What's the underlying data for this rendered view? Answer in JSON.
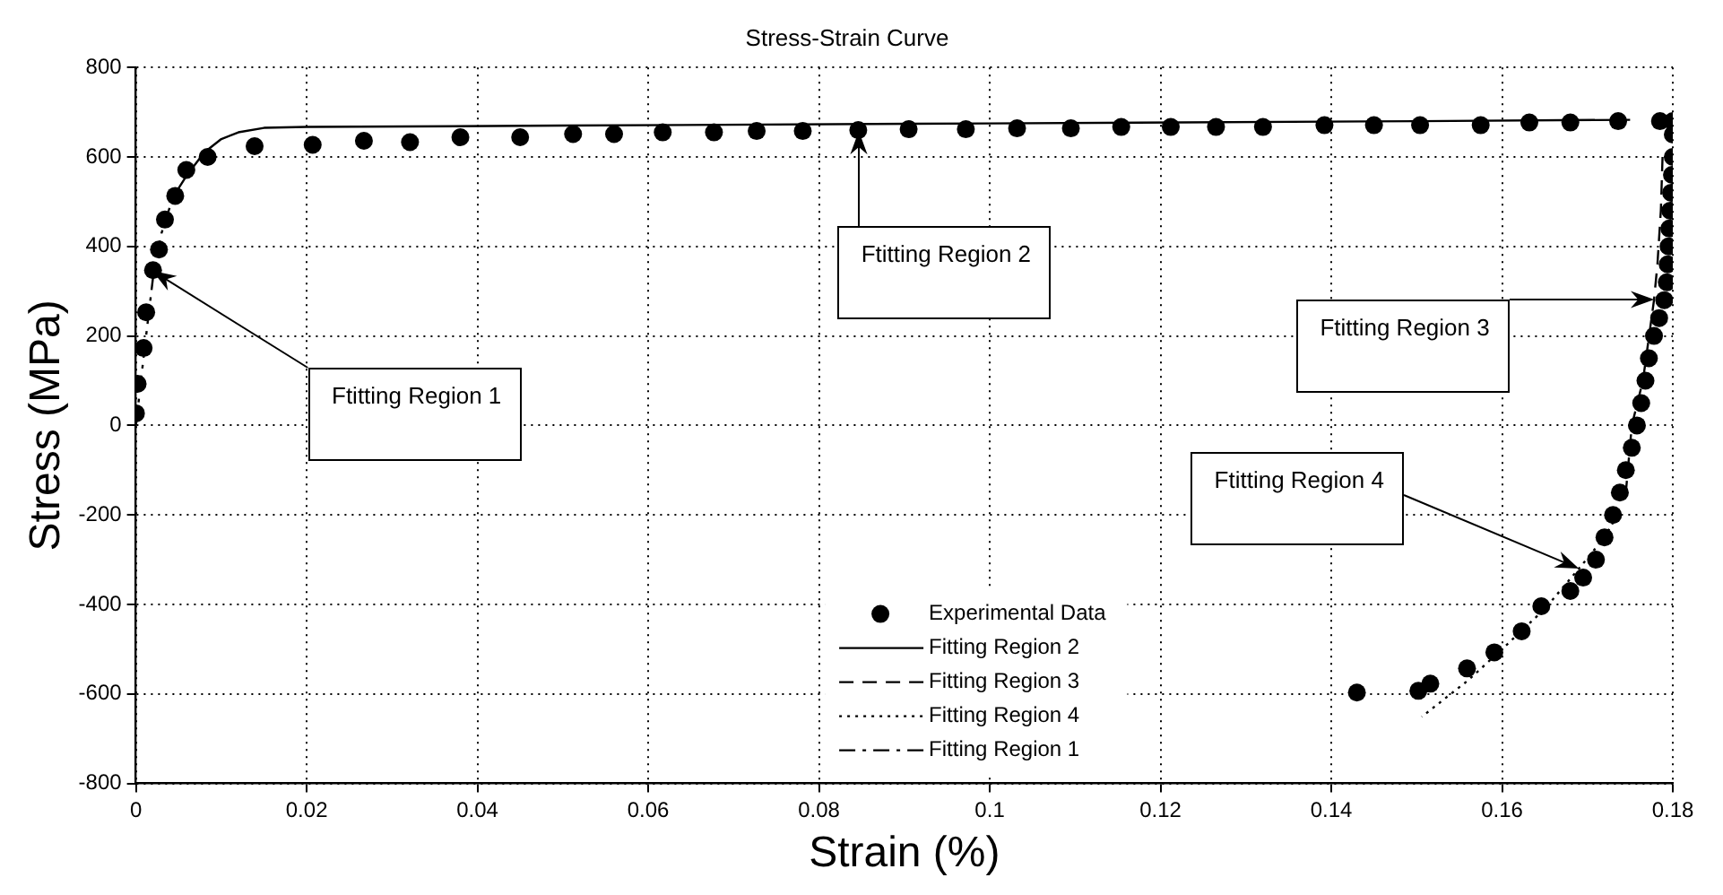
{
  "chart_data": {
    "type": "scatter",
    "title": "Stress-Strain Curve",
    "xlabel": "Strain (%)",
    "ylabel": "Stress (MPa)",
    "xlim": [
      0,
      0.18
    ],
    "xticks": [
      0,
      0.02,
      0.04,
      0.06,
      0.08,
      0.1,
      0.12,
      0.14,
      0.16,
      0.18
    ],
    "ylim": [
      -800,
      800
    ],
    "yticks": [
      -800,
      -600,
      -400,
      -200,
      0,
      200,
      400,
      600,
      800
    ],
    "grid": true,
    "legend": "bottom",
    "series": [
      {
        "name": "Experimental Data",
        "type": "scatter",
        "marker": "circle",
        "color": "#000000",
        "x": [
          0,
          0.0002,
          0.0009,
          0.0012,
          0.002,
          0.0027,
          0.0034,
          0.0046,
          0.0059,
          0.0084,
          0.0139,
          0.0207,
          0.0267,
          0.0321,
          0.038,
          0.045,
          0.0512,
          0.056,
          0.0617,
          0.0677,
          0.0727,
          0.0781,
          0.0846,
          0.0905,
          0.0972,
          0.1032,
          0.1095,
          0.1154,
          0.1212,
          0.1265,
          0.132,
          0.1392,
          0.145,
          0.1504,
          0.1575,
          0.1632,
          0.168,
          0.1736,
          0.1785,
          0.18,
          0.18,
          0.18,
          0.1799,
          0.1798,
          0.1797,
          0.1796,
          0.1795,
          0.1794,
          0.1793,
          0.179,
          0.1784,
          0.1778,
          0.1772,
          0.1768,
          0.1763,
          0.1758,
          0.1752,
          0.1745,
          0.1738,
          0.173,
          0.172,
          0.171,
          0.1695,
          0.168,
          0.1646,
          0.1623,
          0.1591,
          0.1559,
          0.1516,
          0.1502,
          0.143
        ],
        "values": [
          27,
          93,
          173,
          253,
          347,
          393,
          460,
          513,
          571,
          600,
          624,
          627,
          636,
          633,
          644,
          644,
          651,
          651,
          655,
          655,
          658,
          658,
          660,
          662,
          662,
          664,
          664,
          667,
          667,
          667,
          667,
          671,
          671,
          671,
          671,
          677,
          677,
          680,
          680,
          680,
          650,
          600,
          560,
          520,
          480,
          440,
          400,
          360,
          320,
          280,
          240,
          200,
          150,
          100,
          50,
          0,
          -50,
          -100,
          -150,
          -200,
          -250,
          -300,
          -340,
          -370,
          -404,
          -460,
          -507,
          -543,
          -577,
          -593,
          -597
        ]
      },
      {
        "name": "Fitting Region 2",
        "type": "line",
        "marker": "none",
        "line_style": "solid",
        "color": "#000000",
        "x": [
          0.006,
          0.008,
          0.01,
          0.012,
          0.015,
          0.02,
          0.05,
          0.1,
          0.15,
          0.175
        ],
        "values": [
          560,
          610,
          640,
          655,
          665,
          667,
          670,
          675,
          680,
          683
        ]
      },
      {
        "name": "Fitting Region 3",
        "type": "line",
        "marker": "none",
        "line_style": "dashed",
        "color": "#000000",
        "x": [
          0.1788,
          0.1786,
          0.1782,
          0.1778,
          0.1765,
          0.1752,
          0.1745
        ],
        "values": [
          600,
          480,
          360,
          280,
          100,
          0,
          -150
        ]
      },
      {
        "name": "Fitting Region 4",
        "type": "line",
        "marker": "none",
        "line_style": "dotted",
        "color": "#000000",
        "x": [
          0.1735,
          0.172,
          0.169,
          0.165,
          0.16,
          0.156,
          0.1506
        ],
        "values": [
          -200,
          -250,
          -320,
          -410,
          -500,
          -570,
          -651
        ]
      },
      {
        "name": "Fitting Region 1",
        "type": "line",
        "marker": "none",
        "line_style": "dashdot",
        "color": "#000000",
        "x": [
          0,
          0.001,
          0.002,
          0.003,
          0.004,
          0.005,
          0.006
        ],
        "values": [
          0,
          170,
          330,
          430,
          490,
          530,
          560
        ]
      }
    ],
    "annotations": [
      {
        "text": "Ftitting Region 1",
        "x": 0.002,
        "y": 347
      },
      {
        "text": "Ftitting Region 2",
        "x": 0.0846,
        "y": 660
      },
      {
        "text": "Ftitting Region 3",
        "x": 0.1778,
        "y": 280
      },
      {
        "text": "Ftitting Region 4",
        "x": 0.169,
        "y": -320
      }
    ]
  }
}
